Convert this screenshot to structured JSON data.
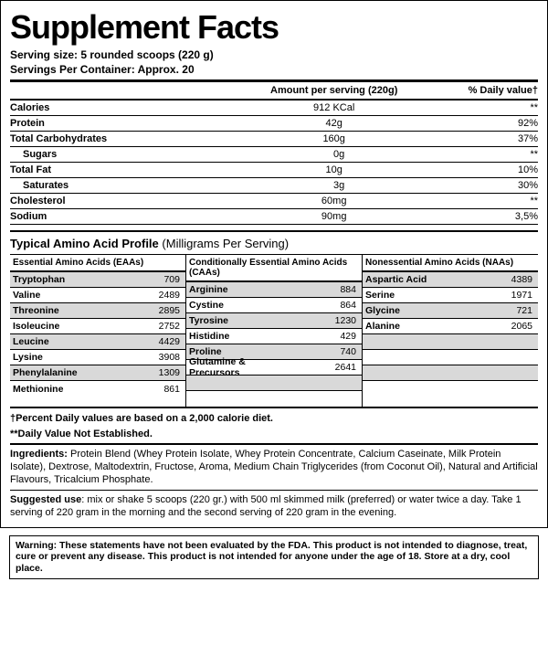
{
  "title": "Supplement Facts",
  "serving_size_label": "Serving size:",
  "serving_size_value": "5 rounded scoops (220 g)",
  "servings_per_label": "Servings Per Container:",
  "servings_per_value": "Approx. 20",
  "col_amount": "Amount per serving (220g)",
  "col_dv": "% Daily value†",
  "nutrients": [
    {
      "name": "Calories",
      "amt": "912 KCal",
      "dv": "**",
      "indent": false
    },
    {
      "name": "Protein",
      "amt": "42g",
      "dv": "92%",
      "indent": false
    },
    {
      "name": "Total Carbohydrates",
      "amt": "160g",
      "dv": "37%",
      "indent": false
    },
    {
      "name": "Sugars",
      "amt": "0g",
      "dv": "**",
      "indent": true
    },
    {
      "name": "Total Fat",
      "amt": "10g",
      "dv": "10%",
      "indent": false
    },
    {
      "name": "Saturates",
      "amt": "3g",
      "dv": "30%",
      "indent": true
    },
    {
      "name": "Cholesterol",
      "amt": "60mg",
      "dv": "**",
      "indent": false
    },
    {
      "name": "Sodium",
      "amt": "90mg",
      "dv": "3,5%",
      "indent": false
    }
  ],
  "aa_title": "Typical Amino Acid Profile",
  "aa_title_sub": "(Milligrams Per Serving)",
  "aa_headers": [
    "Essential Amino Acids (EAAs)",
    "Conditionally Essential Amino Acids (CAAs)",
    "Nonessential Amino Acids (NAAs)"
  ],
  "aa_rows": 8,
  "aa_cols": [
    [
      {
        "n": "Tryptophan",
        "v": "709"
      },
      {
        "n": "Valine",
        "v": "2489"
      },
      {
        "n": "Threonine",
        "v": "2895"
      },
      {
        "n": "Isoleucine",
        "v": "2752"
      },
      {
        "n": "Leucine",
        "v": "4429"
      },
      {
        "n": "Lysine",
        "v": "3908"
      },
      {
        "n": "Phenylalanine",
        "v": "1309"
      },
      {
        "n": "Methionine",
        "v": "861"
      }
    ],
    [
      {
        "n": "Arginine",
        "v": "884"
      },
      {
        "n": "Cystine",
        "v": "864"
      },
      {
        "n": "Tyrosine",
        "v": "1230"
      },
      {
        "n": "Histidine",
        "v": "429"
      },
      {
        "n": "Proline",
        "v": "740"
      },
      {
        "n": "Glutamine & Precursors",
        "v": "2641"
      }
    ],
    [
      {
        "n": "Aspartic Acid",
        "v": "4389"
      },
      {
        "n": "Serine",
        "v": "1971"
      },
      {
        "n": "Glycine",
        "v": "721"
      },
      {
        "n": "Alanine",
        "v": "2065"
      }
    ]
  ],
  "footnote1": "†Percent Daily values are based on a 2,000 calorie diet.",
  "footnote2": "**Daily Value Not Established.",
  "ingredients_label": "Ingredients:",
  "ingredients_text": " Protein Blend (Whey Protein Isolate, Whey Protein Concentrate, Calcium Caseinate, Milk Protein Isolate), Dextrose, Maltodextrin, Fructose, Aroma, Medium Chain Triglycerides (from Coconut Oil), Natural and Artificial Flavours, Tricalcium Phosphate.",
  "suggested_label": "Suggested use",
  "suggested_text": ": mix or shake 5 scoops (220 gr.) with 500 ml skimmed milk (preferred) or water twice a day. Take 1 serving of 220 gram in the morning and the second serving of 220 gram in the evening.",
  "warning": "Warning: These statements have not been evaluated by the FDA. This product is not intended to diagnose, treat, cure or prevent any disease. This product is not intended for anyone under the age of 18. Store at a dry, cool place."
}
